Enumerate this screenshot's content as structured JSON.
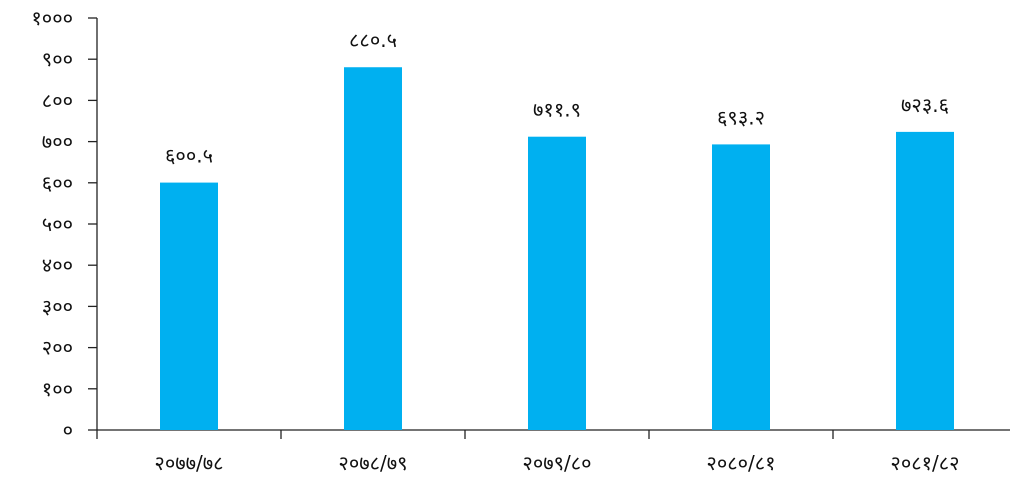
{
  "chart_data": {
    "type": "bar",
    "categories": [
      "२०७७/७८",
      "२०७८/७९",
      "२०७९/८०",
      "२०८०/८१",
      "२०८१/८२"
    ],
    "values": [
      600.5,
      880.5,
      711.9,
      693.2,
      723.6
    ],
    "data_labels": [
      "६००.५",
      "८८०.५",
      "७११.९",
      "६९३.२",
      "७२३.६"
    ],
    "y_ticks": [
      0,
      100,
      200,
      300,
      400,
      500,
      600,
      700,
      800,
      900,
      1000
    ],
    "y_tick_labels": [
      "०",
      "१००",
      "२००",
      "३००",
      "४००",
      "५००",
      "६००",
      "७००",
      "८००",
      "९००",
      "१०००"
    ],
    "ylim": [
      0,
      1000
    ],
    "grid": false,
    "legend": "none",
    "bar_color": "#00b0f0"
  }
}
